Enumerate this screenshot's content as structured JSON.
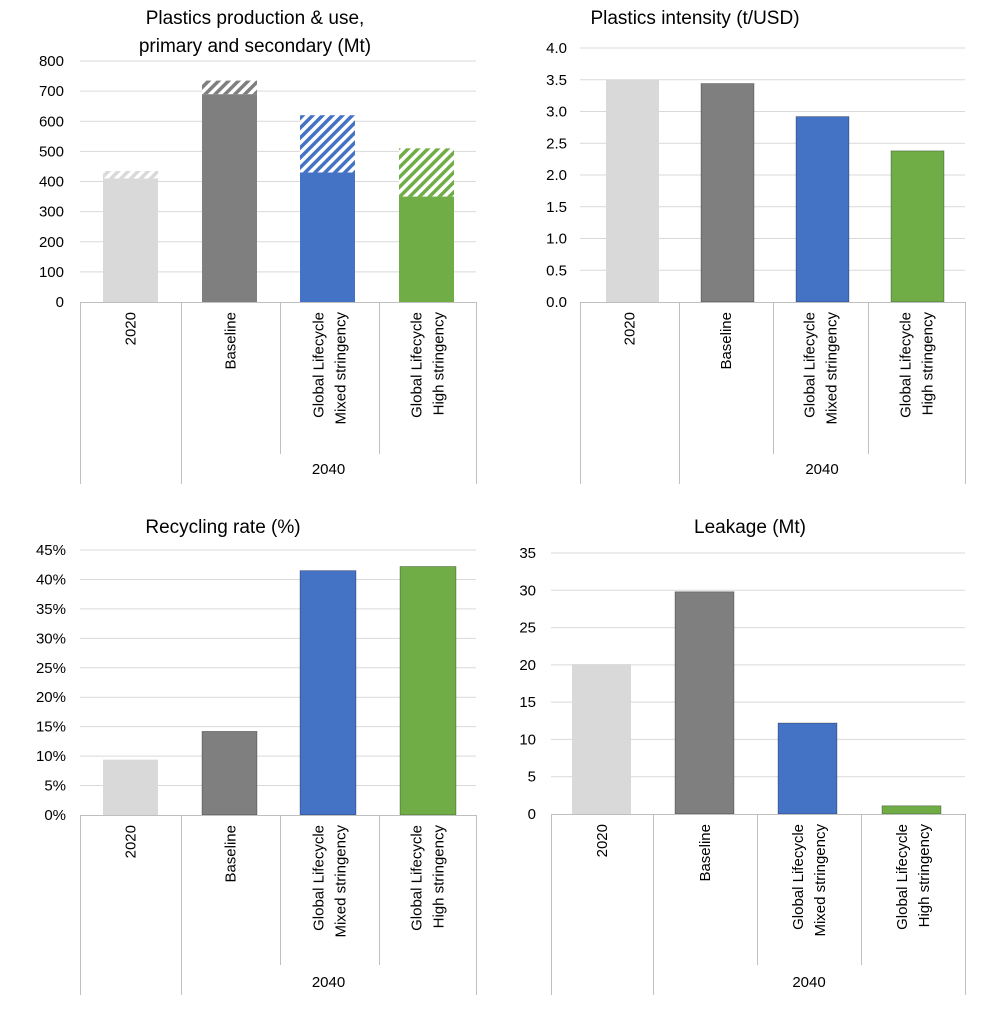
{
  "chart_data": [
    {
      "type": "bar",
      "title_lines": [
        "Plastics production & use,",
        "primary and secondary (Mt)"
      ],
      "categories": [
        "2020",
        "Baseline",
        "Global Lifecycle Mixed stringency",
        "Global Lifecycle High stringency"
      ],
      "category_lines": [
        [
          "2020"
        ],
        [
          "Baseline"
        ],
        [
          "Global Lifecycle",
          "Mixed stringency"
        ],
        [
          "Global Lifecycle",
          "High stringency"
        ]
      ],
      "group_label": "2040",
      "series": [
        {
          "name": "primary",
          "values": [
            410,
            690,
            430,
            350
          ]
        },
        {
          "name": "secondary",
          "values": [
            25,
            45,
            190,
            160
          ]
        }
      ],
      "ylim": [
        0,
        800
      ],
      "yticks": [
        "0",
        "100",
        "200",
        "300",
        "400",
        "500",
        "600",
        "700",
        "800"
      ],
      "grid": true
    },
    {
      "type": "bar",
      "title_lines": [
        "Plastics intensity (t/USD)"
      ],
      "categories": [
        "2020",
        "Baseline",
        "Global Lifecycle Mixed stringency",
        "Global Lifecycle High stringency"
      ],
      "category_lines": [
        [
          "2020"
        ],
        [
          "Baseline"
        ],
        [
          "Global Lifecycle",
          "Mixed stringency"
        ],
        [
          "Global Lifecycle",
          "High stringency"
        ]
      ],
      "group_label": "2040",
      "values": [
        3.5,
        3.44,
        2.92,
        2.38
      ],
      "ylim": [
        0,
        4
      ],
      "yticks": [
        "0.0",
        "0.5",
        "1.0",
        "1.5",
        "2.0",
        "2.5",
        "3.0",
        "3.5",
        "4.0"
      ],
      "grid": true
    },
    {
      "type": "bar",
      "title_lines": [
        "Recycling rate (%)"
      ],
      "categories": [
        "2020",
        "Baseline",
        "Global Lifecycle Mixed stringency",
        "Global Lifecycle High stringency"
      ],
      "category_lines": [
        [
          "2020"
        ],
        [
          "Baseline"
        ],
        [
          "Global Lifecycle",
          "Mixed stringency"
        ],
        [
          "Global Lifecycle",
          "High stringency"
        ]
      ],
      "group_label": "2040",
      "values": [
        9.4,
        14.2,
        41.5,
        42.2
      ],
      "ylim": [
        0,
        45
      ],
      "yticks": [
        "0%",
        "5%",
        "10%",
        "15%",
        "20%",
        "25%",
        "30%",
        "35%",
        "40%",
        "45%"
      ],
      "grid": true
    },
    {
      "type": "bar",
      "title_lines": [
        "Leakage (Mt)"
      ],
      "categories": [
        "2020",
        "Baseline",
        "Global Lifecycle Mixed stringency",
        "Global Lifecycle High stringency"
      ],
      "category_lines": [
        [
          "2020"
        ],
        [
          "Baseline"
        ],
        [
          "Global Lifecycle",
          "Mixed stringency"
        ],
        [
          "Global Lifecycle",
          "High stringency"
        ]
      ],
      "group_label": "2040",
      "values": [
        20.1,
        29.8,
        12.2,
        1.1
      ],
      "ylim": [
        0,
        35
      ],
      "yticks": [
        "0",
        "5",
        "10",
        "15",
        "20",
        "25",
        "30",
        "35"
      ],
      "grid": true
    }
  ],
  "colors": {
    "bar_2020": "#d9d9d9",
    "bar_baseline": "#7f7f7f",
    "bar_mixed": "#4472c4",
    "bar_high": "#70ad47",
    "grid": "#d9d9d9",
    "axis": "#bfbfbf"
  }
}
